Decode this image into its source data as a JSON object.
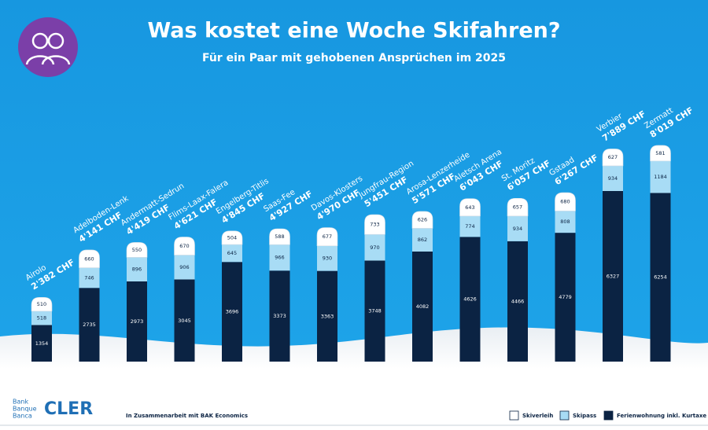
{
  "chart_data": {
    "type": "stacked_bar",
    "title": "Was kostet eine Woche Skifahren?",
    "subtitle": "Für ein Paar mit gehobenen Ansprüchen im 2025",
    "categories": [
      "Airolo",
      "Adelboden-Lenk",
      "Andermatt-Sedrun",
      "Flims-Laax-Falera",
      "Engelberg-Titlis",
      "Saas-Fee",
      "Davos-Klosters",
      "Jungfrau-Region",
      "Arosa-Lenzerheide",
      "Aletsch Arena",
      "St. Moritz",
      "Gstaad",
      "Verbier",
      "Zermatt"
    ],
    "series": [
      {
        "name": "Ferienwohnung inkl. Kurtaxe",
        "color": "#0b2343",
        "values": [
          1354,
          2735,
          2973,
          3045,
          3696,
          3373,
          3363,
          3748,
          4082,
          4626,
          4466,
          4779,
          6327,
          6254
        ]
      },
      {
        "name": "Skipass",
        "color": "#a8dcf5",
        "values": [
          518,
          746,
          896,
          906,
          645,
          966,
          930,
          970,
          862,
          774,
          934,
          808,
          934,
          1184
        ]
      },
      {
        "name": "Skiverleih",
        "color": "#ffffff",
        "values": [
          510,
          660,
          550,
          670,
          504,
          588,
          677,
          733,
          626,
          643,
          657,
          680,
          627,
          581
        ]
      }
    ],
    "totals": [
      2382,
      4141,
      4419,
      4621,
      4845,
      4927,
      4970,
      5451,
      5571,
      6043,
      6057,
      6267,
      7889,
      8019
    ],
    "total_labels": [
      "2'382 CHF",
      "4'141 CHF",
      "4'419 CHF",
      "4'621 CHF",
      "4'845 CHF",
      "4'927 CHF",
      "4'970 CHF",
      "5'451 CHF",
      "5'571 CHF",
      "6'043 CHF",
      "6'057 CHF",
      "6'267 CHF",
      "7'889 CHF",
      "8'019 CHF"
    ],
    "brand": [
      "Bank",
      "Banque",
      "Banca"
    ],
    "logo": "CLER",
    "note": "In Zusammenarbeit mit BAK Economics"
  }
}
